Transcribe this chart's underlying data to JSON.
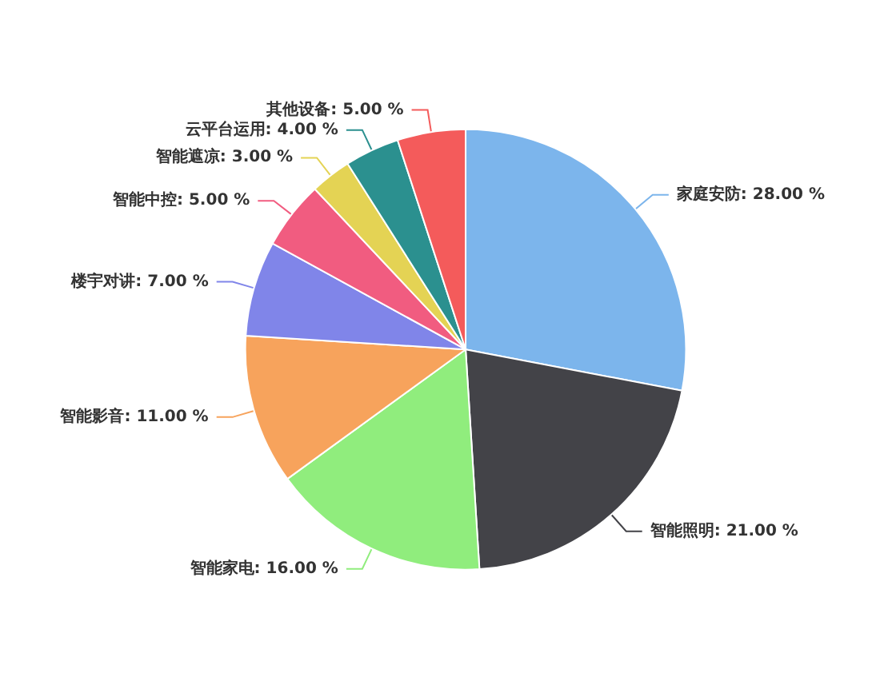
{
  "chart_data": {
    "type": "pie",
    "categories": [
      "家庭安防",
      "智能照明",
      "智能家电",
      "智能影音",
      "楼宇对讲",
      "智能中控",
      "智能遮凉",
      "云平台运用",
      "其他设备"
    ],
    "values": [
      28,
      21,
      16,
      11,
      7,
      5,
      3,
      4,
      5
    ],
    "value_labels": [
      "28.00 %",
      "21.00 %",
      "16.00 %",
      "11.00 %",
      "7.00 %",
      "5.00 %",
      "3.00 %",
      "4.00 %",
      "5.00 %"
    ],
    "colors": [
      "#7cb5ec",
      "#434348",
      "#90ed7d",
      "#f7a35c",
      "#8085e9",
      "#f15c80",
      "#e4d354",
      "#2b908f",
      "#f45b5b"
    ],
    "legend": false
  }
}
